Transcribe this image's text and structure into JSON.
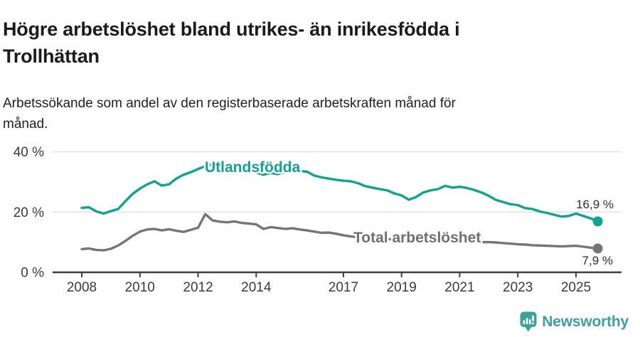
{
  "header": {
    "title": "Högre arbetslöshet bland utrikes- än inrikesfödda i Trollhättan",
    "title_lines": [
      "Högre arbetslöshet bland utrikes- än inrikesfödda i",
      "Trollhättan"
    ],
    "subtitle_lines": [
      "Arbetssökande som andel av den registerbaserade arbetskraften månad för",
      "månad."
    ]
  },
  "chart_data": {
    "type": "line",
    "title": "Högre arbetslöshet bland utrikes- än inrikesfödda i Trollhättan",
    "subtitle": "Arbetssökande som andel av den registerbaserade arbetskraften månad för månad.",
    "xlabel": "",
    "ylabel": "%",
    "xlim": [
      2007.9,
      2026.3
    ],
    "ylim": [
      0,
      42
    ],
    "grid": "horizontal",
    "x": [
      2008,
      2008.25,
      2008.5,
      2008.75,
      2009,
      2009.25,
      2009.5,
      2009.75,
      2010,
      2010.25,
      2010.5,
      2010.75,
      2011,
      2011.25,
      2011.5,
      2011.75,
      2012,
      2012.25,
      2012.5,
      2012.75,
      2013,
      2013.25,
      2013.5,
      2013.75,
      2014,
      2014.25,
      2014.5,
      2014.75,
      2015,
      2015.25,
      2015.5,
      2015.75,
      2016,
      2016.25,
      2016.5,
      2016.75,
      2017,
      2017.25,
      2017.5,
      2017.75,
      2018,
      2018.25,
      2018.5,
      2018.75,
      2019,
      2019.25,
      2019.5,
      2019.75,
      2020,
      2020.25,
      2020.5,
      2020.75,
      2021,
      2021.25,
      2021.5,
      2021.75,
      2022,
      2022.25,
      2022.5,
      2022.75,
      2023,
      2023.25,
      2023.5,
      2023.75,
      2024,
      2024.25,
      2024.5,
      2024.75,
      2025,
      2025.25,
      2025.5,
      2025.75
    ],
    "series": [
      {
        "name": "Utlandsfödda",
        "color": "#10a392",
        "end_label": "16,9 %",
        "end_value": 16.9,
        "values": [
          21.4,
          21.6,
          20.2,
          19.5,
          20.3,
          21.0,
          23.6,
          26.0,
          27.8,
          29.2,
          30.2,
          28.8,
          29.2,
          31.1,
          32.4,
          33.2,
          34.3,
          35.2,
          35.8,
          35.2,
          34.8,
          34.4,
          34.0,
          33.5,
          33.1,
          32.4,
          33.0,
          32.6,
          33.4,
          33.2,
          33.6,
          33.4,
          32.1,
          31.5,
          31.1,
          30.7,
          30.4,
          30.2,
          29.6,
          28.6,
          28.1,
          27.6,
          27.2,
          26.2,
          25.5,
          24.1,
          25.0,
          26.5,
          27.2,
          27.6,
          28.7,
          28.1,
          28.4,
          28.0,
          27.3,
          26.5,
          25.4,
          24.0,
          23.3,
          22.6,
          22.3,
          21.3,
          21.0,
          20.2,
          19.7,
          19.1,
          18.5,
          18.7,
          19.5,
          18.7,
          17.9,
          16.9
        ]
      },
      {
        "name": "Total arbetslöshet",
        "color": "#757575",
        "end_label": "7,9 %",
        "end_value": 7.9,
        "values": [
          7.7,
          7.9,
          7.4,
          7.3,
          7.8,
          8.9,
          10.4,
          12.1,
          13.5,
          14.2,
          14.4,
          13.9,
          14.3,
          13.8,
          13.4,
          14.1,
          14.8,
          19.3,
          17.2,
          16.8,
          16.6,
          16.9,
          16.4,
          16.2,
          15.9,
          14.4,
          15.0,
          14.7,
          14.4,
          14.6,
          14.2,
          13.9,
          13.5,
          13.1,
          13.2,
          12.8,
          12.3,
          11.9,
          11.6,
          11.5,
          11.3,
          11.2,
          11.0,
          10.9,
          10.8,
          10.7,
          10.6,
          10.5,
          10.5,
          10.4,
          10.4,
          10.3,
          10.3,
          10.2,
          10.1,
          10.0,
          10.0,
          9.9,
          9.7,
          9.5,
          9.3,
          9.2,
          9.0,
          8.9,
          8.8,
          8.7,
          8.6,
          8.7,
          8.8,
          8.5,
          8.2,
          7.9
        ]
      }
    ],
    "x_ticks": [
      {
        "v": 2008,
        "label": "2008"
      },
      {
        "v": 2010,
        "label": "2010"
      },
      {
        "v": 2012,
        "label": "2012"
      },
      {
        "v": 2014,
        "label": "2014"
      },
      {
        "v": 2017,
        "label": "2017"
      },
      {
        "v": 2019,
        "label": "2019"
      },
      {
        "v": 2021,
        "label": "2021"
      },
      {
        "v": 2023,
        "label": "2023"
      },
      {
        "v": 2025,
        "label": "2025"
      }
    ],
    "y_ticks": [
      {
        "v": 0,
        "label": "0 %"
      },
      {
        "v": 20,
        "label": "20 %"
      },
      {
        "v": 40,
        "label": "40 %"
      }
    ],
    "legend_position": "inline-labels"
  },
  "footer": {
    "brand": "Newsworthy",
    "brand_color": "#3aa29b",
    "logo_icon": "bar-chart-pin-icon"
  }
}
